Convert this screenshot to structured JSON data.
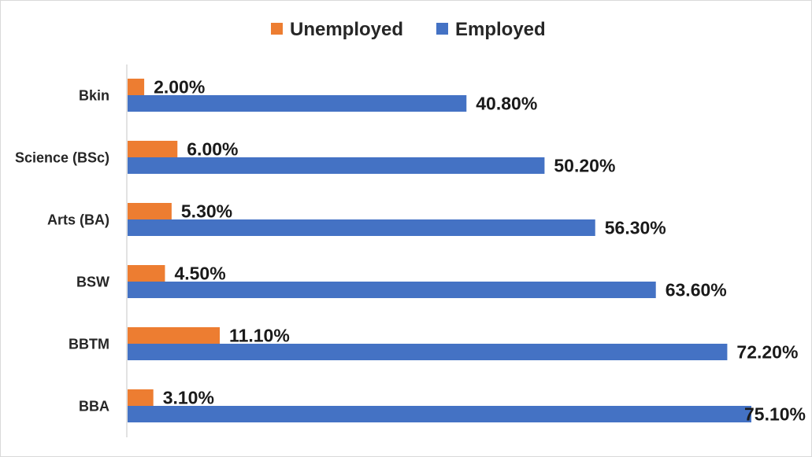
{
  "chart_data": {
    "type": "bar",
    "orientation": "horizontal",
    "categories": [
      "Bkin",
      "Science (BSc)",
      "Arts (BA)",
      "BSW",
      "BBTM",
      "BBA"
    ],
    "series": [
      {
        "name": "Unemployed",
        "color": "#ed7d31",
        "values": [
          2.0,
          6.0,
          5.3,
          4.5,
          11.1,
          3.1
        ],
        "labels": [
          "2.00%",
          "6.00%",
          "5.30%",
          "4.50%",
          "11.10%",
          "3.10%"
        ]
      },
      {
        "name": "Employed",
        "color": "#4472c4",
        "values": [
          40.8,
          50.2,
          56.3,
          63.6,
          72.2,
          75.1
        ],
        "labels": [
          "40.80%",
          "50.20%",
          "56.30%",
          "63.60%",
          "72.20%",
          "75.10%"
        ]
      }
    ],
    "xlim": [
      0,
      75.1
    ],
    "value_unit": "%",
    "gridlines": false,
    "x_axis_visible": false,
    "legend_position": "top"
  }
}
